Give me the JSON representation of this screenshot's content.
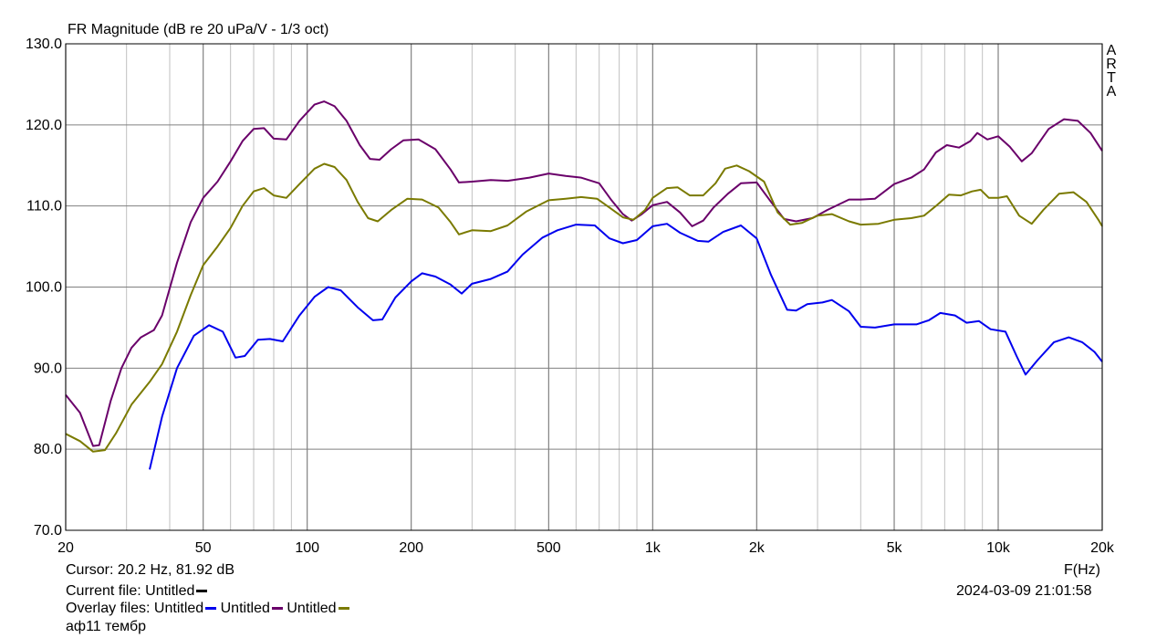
{
  "chart_data": {
    "type": "line",
    "title": "FR Magnitude (dB re 20 uPa/V - 1/3 oct)",
    "xlabel": "F(Hz)",
    "ylabel": "",
    "xscale": "log",
    "xlim": [
      20,
      20000
    ],
    "ylim": [
      70,
      130
    ],
    "xticks": [
      20,
      50,
      100,
      200,
      500,
      1000,
      2000,
      5000,
      10000,
      20000
    ],
    "xtick_labels": [
      "20",
      "50",
      "100",
      "200",
      "500",
      "1k",
      "2k",
      "5k",
      "10k",
      "20k"
    ],
    "yticks": [
      70,
      80,
      90,
      100,
      110,
      120,
      130
    ],
    "ytick_labels": [
      "70.0",
      "80.0",
      "90.0",
      "100.0",
      "110.0",
      "120.0",
      "130.0"
    ],
    "grid": true,
    "series": [
      {
        "name": "Untitled",
        "color": "#0000ee",
        "points": [
          [
            35,
            77.5
          ],
          [
            38,
            84
          ],
          [
            42,
            90
          ],
          [
            47,
            94
          ],
          [
            52,
            95.3
          ],
          [
            57,
            94.5
          ],
          [
            62,
            91.3
          ],
          [
            66,
            91.5
          ],
          [
            72,
            93.5
          ],
          [
            78,
            93.6
          ],
          [
            85,
            93.3
          ],
          [
            95,
            96.5
          ],
          [
            105,
            98.8
          ],
          [
            115,
            100
          ],
          [
            125,
            99.6
          ],
          [
            140,
            97.5
          ],
          [
            155,
            95.9
          ],
          [
            165,
            96
          ],
          [
            180,
            98.7
          ],
          [
            200,
            100.7
          ],
          [
            215,
            101.7
          ],
          [
            235,
            101.3
          ],
          [
            260,
            100.3
          ],
          [
            280,
            99.2
          ],
          [
            300,
            100.4
          ],
          [
            340,
            101
          ],
          [
            380,
            101.9
          ],
          [
            420,
            104
          ],
          [
            480,
            106.1
          ],
          [
            530,
            107
          ],
          [
            600,
            107.7
          ],
          [
            680,
            107.6
          ],
          [
            750,
            106
          ],
          [
            820,
            105.4
          ],
          [
            900,
            105.8
          ],
          [
            1000,
            107.5
          ],
          [
            1100,
            107.8
          ],
          [
            1200,
            106.7
          ],
          [
            1350,
            105.7
          ],
          [
            1450,
            105.6
          ],
          [
            1600,
            106.8
          ],
          [
            1800,
            107.6
          ],
          [
            2000,
            106
          ],
          [
            2200,
            101.5
          ],
          [
            2450,
            97.2
          ],
          [
            2600,
            97.1
          ],
          [
            2800,
            97.9
          ],
          [
            3100,
            98.1
          ],
          [
            3300,
            98.4
          ],
          [
            3700,
            97
          ],
          [
            4000,
            95.1
          ],
          [
            4400,
            95
          ],
          [
            5000,
            95.4
          ],
          [
            5800,
            95.4
          ],
          [
            6300,
            95.9
          ],
          [
            6800,
            96.8
          ],
          [
            7500,
            96.5
          ],
          [
            8100,
            95.6
          ],
          [
            8800,
            95.8
          ],
          [
            9500,
            94.8
          ],
          [
            10500,
            94.5
          ],
          [
            11300,
            91.5
          ],
          [
            12000,
            89.2
          ],
          [
            13000,
            91
          ],
          [
            14500,
            93.2
          ],
          [
            16000,
            93.8
          ],
          [
            17500,
            93.2
          ],
          [
            19000,
            92
          ],
          [
            20000,
            90.8
          ]
        ]
      },
      {
        "name": "Untitled",
        "color": "#6a006a",
        "points": [
          [
            20,
            86.7
          ],
          [
            22,
            84.5
          ],
          [
            24,
            80.4
          ],
          [
            25,
            80.5
          ],
          [
            27,
            86
          ],
          [
            29,
            90
          ],
          [
            31,
            92.5
          ],
          [
            33,
            93.8
          ],
          [
            36,
            94.7
          ],
          [
            38,
            96.5
          ],
          [
            42,
            103
          ],
          [
            46,
            108
          ],
          [
            50,
            111
          ],
          [
            55,
            113
          ],
          [
            60,
            115.5
          ],
          [
            65,
            118
          ],
          [
            70,
            119.5
          ],
          [
            75,
            119.6
          ],
          [
            80,
            118.3
          ],
          [
            87,
            118.2
          ],
          [
            95,
            120.5
          ],
          [
            105,
            122.5
          ],
          [
            112,
            122.9
          ],
          [
            120,
            122.3
          ],
          [
            130,
            120.5
          ],
          [
            142,
            117.5
          ],
          [
            152,
            115.8
          ],
          [
            162,
            115.7
          ],
          [
            175,
            117
          ],
          [
            190,
            118.1
          ],
          [
            210,
            118.2
          ],
          [
            235,
            117
          ],
          [
            260,
            114.5
          ],
          [
            275,
            112.9
          ],
          [
            300,
            113
          ],
          [
            340,
            113.2
          ],
          [
            380,
            113.1
          ],
          [
            440,
            113.5
          ],
          [
            500,
            114
          ],
          [
            560,
            113.7
          ],
          [
            620,
            113.5
          ],
          [
            700,
            112.8
          ],
          [
            760,
            110.7
          ],
          [
            820,
            109
          ],
          [
            870,
            108.2
          ],
          [
            930,
            109
          ],
          [
            1000,
            110.1
          ],
          [
            1100,
            110.5
          ],
          [
            1200,
            109.2
          ],
          [
            1300,
            107.5
          ],
          [
            1400,
            108.2
          ],
          [
            1500,
            109.8
          ],
          [
            1650,
            111.5
          ],
          [
            1800,
            112.8
          ],
          [
            2000,
            112.9
          ],
          [
            2200,
            110.5
          ],
          [
            2400,
            108.4
          ],
          [
            2600,
            108.1
          ],
          [
            2900,
            108.5
          ],
          [
            3200,
            109.5
          ],
          [
            3700,
            110.8
          ],
          [
            4000,
            110.8
          ],
          [
            4400,
            110.9
          ],
          [
            5000,
            112.7
          ],
          [
            5600,
            113.5
          ],
          [
            6100,
            114.5
          ],
          [
            6600,
            116.6
          ],
          [
            7100,
            117.5
          ],
          [
            7700,
            117.2
          ],
          [
            8300,
            118
          ],
          [
            8700,
            119
          ],
          [
            9300,
            118.2
          ],
          [
            10000,
            118.6
          ],
          [
            10800,
            117.3
          ],
          [
            11700,
            115.5
          ],
          [
            12500,
            116.5
          ],
          [
            14000,
            119.5
          ],
          [
            15500,
            120.7
          ],
          [
            17000,
            120.5
          ],
          [
            18500,
            119
          ],
          [
            20000,
            116.8
          ]
        ]
      },
      {
        "name": "Untitled",
        "color": "#7a7a00",
        "points": [
          [
            20,
            81.9
          ],
          [
            22,
            81
          ],
          [
            24,
            79.7
          ],
          [
            26,
            79.9
          ],
          [
            28,
            82
          ],
          [
            31,
            85.5
          ],
          [
            35,
            88.3
          ],
          [
            38,
            90.5
          ],
          [
            42,
            94.5
          ],
          [
            46,
            99
          ],
          [
            50,
            102.7
          ],
          [
            55,
            105
          ],
          [
            60,
            107.3
          ],
          [
            65,
            110
          ],
          [
            70,
            111.8
          ],
          [
            75,
            112.2
          ],
          [
            80,
            111.3
          ],
          [
            87,
            111
          ],
          [
            95,
            112.7
          ],
          [
            105,
            114.6
          ],
          [
            112,
            115.2
          ],
          [
            120,
            114.8
          ],
          [
            130,
            113.2
          ],
          [
            140,
            110.5
          ],
          [
            150,
            108.5
          ],
          [
            160,
            108.1
          ],
          [
            175,
            109.5
          ],
          [
            195,
            110.9
          ],
          [
            215,
            110.8
          ],
          [
            240,
            109.8
          ],
          [
            260,
            108
          ],
          [
            275,
            106.5
          ],
          [
            300,
            107
          ],
          [
            340,
            106.9
          ],
          [
            380,
            107.6
          ],
          [
            430,
            109.3
          ],
          [
            500,
            110.7
          ],
          [
            560,
            110.9
          ],
          [
            620,
            111.1
          ],
          [
            690,
            110.9
          ],
          [
            750,
            109.8
          ],
          [
            820,
            108.6
          ],
          [
            880,
            108.3
          ],
          [
            950,
            109.5
          ],
          [
            1000,
            111
          ],
          [
            1100,
            112.2
          ],
          [
            1180,
            112.3
          ],
          [
            1280,
            111.3
          ],
          [
            1400,
            111.3
          ],
          [
            1520,
            112.8
          ],
          [
            1620,
            114.6
          ],
          [
            1750,
            115
          ],
          [
            1900,
            114.3
          ],
          [
            2100,
            113
          ],
          [
            2300,
            109.2
          ],
          [
            2500,
            107.7
          ],
          [
            2700,
            107.9
          ],
          [
            3000,
            108.8
          ],
          [
            3300,
            109
          ],
          [
            3700,
            108.1
          ],
          [
            4000,
            107.7
          ],
          [
            4500,
            107.8
          ],
          [
            5000,
            108.3
          ],
          [
            5600,
            108.5
          ],
          [
            6100,
            108.8
          ],
          [
            6600,
            110
          ],
          [
            7200,
            111.4
          ],
          [
            7800,
            111.3
          ],
          [
            8400,
            111.8
          ],
          [
            8900,
            112
          ],
          [
            9400,
            111
          ],
          [
            10000,
            111
          ],
          [
            10600,
            111.2
          ],
          [
            11500,
            108.8
          ],
          [
            12500,
            107.8
          ],
          [
            13500,
            109.5
          ],
          [
            15000,
            111.5
          ],
          [
            16500,
            111.7
          ],
          [
            18000,
            110.5
          ],
          [
            19500,
            108.3
          ],
          [
            20000,
            107.5
          ]
        ]
      }
    ]
  },
  "watermark": "ARTA",
  "cursor_text": "Cursor: 20.2 Hz, 81.92 dB",
  "current_file_label": "Current file: Untitled",
  "current_file_color": "#000000",
  "overlay_label": "Overlay files:",
  "overlay_files": [
    {
      "name": "Untitled",
      "color": "#0000ee"
    },
    {
      "name": "Untitled",
      "color": "#6a006a"
    },
    {
      "name": "Untitled",
      "color": "#7a7a00"
    }
  ],
  "note": "аф11 тембр",
  "datetime": "2024-03-09  21:01:58"
}
